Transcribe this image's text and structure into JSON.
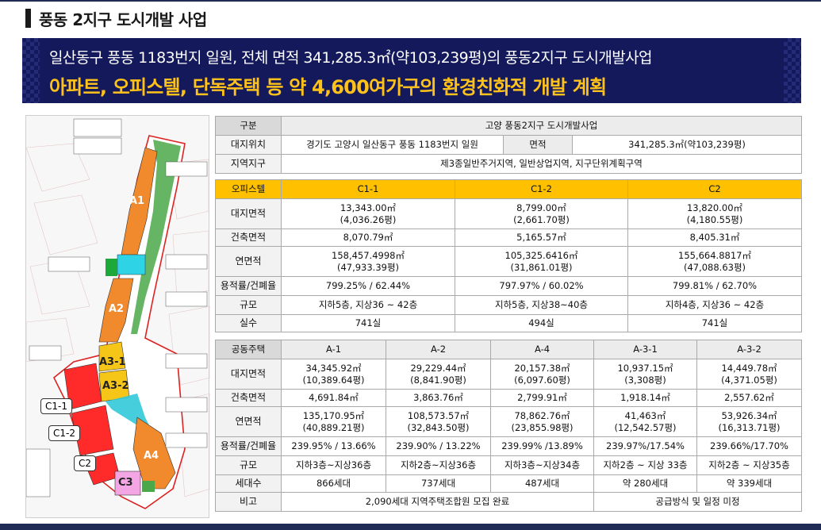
{
  "page_title": "풍동 2지구 도시개발 사업",
  "banner": {
    "line1": "일산동구 풍동 1183번지 일원, 전체 면적 341,285.3㎡(약103,239평)의 풍동2지구 도시개발사업",
    "line2": "아파트, 오피스텔, 단독주택 등 약 4,600여가구의 환경친화적 개발 계획"
  },
  "map": {
    "zones": [
      "A1",
      "A2",
      "A3-1",
      "A3-2",
      "A4",
      "C3"
    ],
    "callouts": [
      "C1-1",
      "C1-2",
      "C2"
    ]
  },
  "overview": {
    "header_label": "구분",
    "header_value": "고양 풍동2지구 도시개발사업",
    "location_label": "대지위치",
    "location_value": "경기도 고양시 일산동구 풍동 1183번지 일원",
    "area_label": "면적",
    "area_value": "341,285.3㎡(약103,239평)",
    "zone_label": "지역지구",
    "zone_value": "제3종일반주거지역, 일반상업지역, 지구단위계획구역"
  },
  "officetel": {
    "header": "오피스텔",
    "columns": [
      "C1-1",
      "C1-2",
      "C2"
    ],
    "rows": [
      {
        "label": "대지면적",
        "values": [
          [
            "13,343.00㎡",
            "(4,036.26평)"
          ],
          [
            "8,799.00㎡",
            "(2,661.70평)"
          ],
          [
            "13,820.00㎡",
            "(4,180.55평)"
          ]
        ]
      },
      {
        "label": "건축면적",
        "values": [
          [
            "8,070.79㎡"
          ],
          [
            "5,165.57㎡"
          ],
          [
            "8,405.31㎡"
          ]
        ]
      },
      {
        "label": "연면적",
        "values": [
          [
            "158,457.4998㎡",
            "(47,933.39평)"
          ],
          [
            "105,325.6416㎡",
            "(31,861.01평)"
          ],
          [
            "155,664.8817㎡",
            "(47,088.63평)"
          ]
        ]
      },
      {
        "label": "용적률/건폐율",
        "values": [
          [
            "799.25% / 62.44%"
          ],
          [
            "797.97% / 60.02%"
          ],
          [
            "799.81% / 62.70%"
          ]
        ]
      },
      {
        "label": "규모",
        "values": [
          [
            "지하5층, 지상36 ~ 42층"
          ],
          [
            "지하5층, 지상38~40층"
          ],
          [
            "지하4층, 지상36 ~ 42층"
          ]
        ]
      },
      {
        "label": "실수",
        "values": [
          [
            "741실"
          ],
          [
            "494실"
          ],
          [
            "741실"
          ]
        ]
      }
    ]
  },
  "apartment": {
    "header": "공동주택",
    "columns": [
      "A-1",
      "A-2",
      "A-4",
      "A-3-1",
      "A-3-2"
    ],
    "rows": [
      {
        "label": "대지면적",
        "values": [
          [
            "34,345.92㎡",
            "(10,389.64평)"
          ],
          [
            "29,229.44㎡",
            "(8,841.90평)"
          ],
          [
            "20,157.38㎡",
            "(6,097.60평)"
          ],
          [
            "10,937.15㎡",
            "(3,308평)"
          ],
          [
            "14,449.78㎡",
            "(4,371.05평)"
          ]
        ]
      },
      {
        "label": "건축면적",
        "values": [
          [
            "4,691.84㎡"
          ],
          [
            "3,863.76㎡"
          ],
          [
            "2,799.91㎡"
          ],
          [
            "1,918.14㎡"
          ],
          [
            "2,557.62㎡"
          ]
        ]
      },
      {
        "label": "연면적",
        "values": [
          [
            "135,170.95㎡",
            "(40,889.21평)"
          ],
          [
            "108,573.57㎡",
            "(32,843.50평)"
          ],
          [
            "78,862.76㎡",
            "(23,855.98평)"
          ],
          [
            "41,463㎡",
            "(12,542.57평)"
          ],
          [
            "53,926.34㎡",
            "(16,313.71평)"
          ]
        ]
      },
      {
        "label": "용적률/건폐율",
        "values": [
          [
            "239.95% / 13.66%"
          ],
          [
            "239.90% / 13.22%"
          ],
          [
            "239.99% /13.89%"
          ],
          [
            "239.97%/17.54%"
          ],
          [
            "239.66%/17.70%"
          ]
        ]
      },
      {
        "label": "규모",
        "values": [
          [
            "지하3층~지상36층"
          ],
          [
            "지하2층~지상36층"
          ],
          [
            "지하3층~지상34층"
          ],
          [
            "지하2층 ~ 지상 33층"
          ],
          [
            "지하2층 ~ 지상35층"
          ]
        ]
      },
      {
        "label": "세대수",
        "values": [
          [
            "866세대"
          ],
          [
            "737세대"
          ],
          [
            "487세대"
          ],
          [
            "약 280세대"
          ],
          [
            "약 339세대"
          ]
        ]
      }
    ],
    "note_label": "비고",
    "note_left": "2,090세대 지역주택조합원 모집 완료",
    "note_right": "공급방식 및 일정 미정"
  }
}
